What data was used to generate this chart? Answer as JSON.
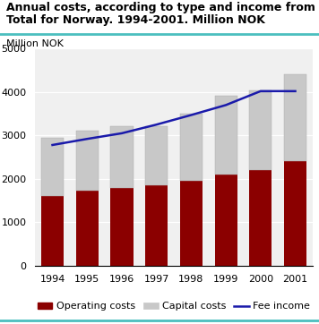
{
  "years": [
    1994,
    1995,
    1996,
    1997,
    1998,
    1999,
    2000,
    2001
  ],
  "operating_costs": [
    1600,
    1720,
    1780,
    1850,
    1950,
    2100,
    2200,
    2400
  ],
  "capital_costs": [
    1350,
    1390,
    1440,
    1370,
    1550,
    1820,
    1830,
    2000
  ],
  "fee_income": [
    2780,
    2920,
    3050,
    3250,
    3470,
    3700,
    4020,
    4020
  ],
  "operating_color": "#8B0000",
  "capital_color": "#C8C8C8",
  "fee_color": "#1a1aaa",
  "title_line1": "Annual costs, according to type and income from fees.",
  "title_line2": "Total for Norway. 1994-2001. Million NOK",
  "ylabel_top": "Million NOK",
  "ylim": [
    0,
    5000
  ],
  "yticks": [
    0,
    1000,
    2000,
    3000,
    4000,
    5000
  ],
  "legend_labels": [
    "Operating costs",
    "Capital costs",
    "Fee income"
  ],
  "title_fontsize": 9.0,
  "axis_fontsize": 8.0,
  "tick_fontsize": 8.0,
  "teal_color": "#4BBFBF"
}
